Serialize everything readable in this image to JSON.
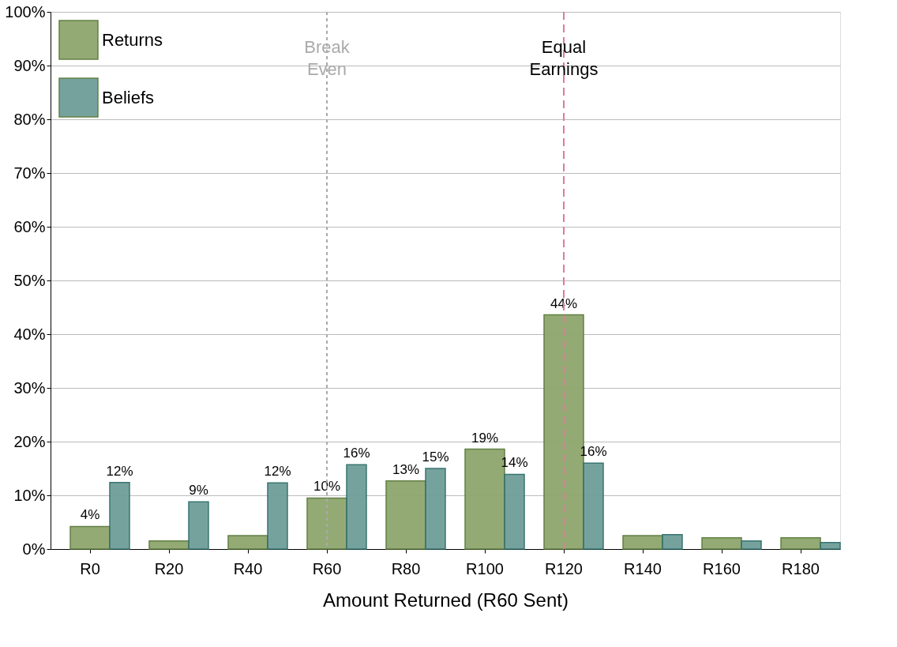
{
  "chart_data": {
    "type": "bar",
    "xlabel": "Amount Returned (R60 Sent)",
    "categories": [
      "R0",
      "R20",
      "R40",
      "R60",
      "R80",
      "R100",
      "R120",
      "R140",
      "R160",
      "R180"
    ],
    "series": [
      {
        "name": "Returns",
        "color": "#8fa66e",
        "values": [
          4.2,
          1.5,
          2.5,
          9.5,
          12.7,
          18.6,
          43.6,
          2.5,
          2.1,
          2.1
        ],
        "value_labels": [
          "4%",
          null,
          null,
          "10%",
          "13%",
          "19%",
          "44%",
          null,
          null,
          null
        ]
      },
      {
        "name": "Beliefs",
        "color": "#6f9e99",
        "values": [
          12.4,
          8.8,
          12.3,
          15.7,
          15.0,
          13.9,
          16.0,
          2.7,
          1.5,
          1.2
        ],
        "value_labels": [
          "12%",
          "9%",
          "12%",
          "16%",
          "15%",
          "14%",
          "16%",
          null,
          null,
          null
        ]
      }
    ],
    "ylim": [
      0,
      100
    ],
    "yticks": [
      {
        "value": 0,
        "label": "0%"
      },
      {
        "value": 10,
        "label": "10%"
      },
      {
        "value": 20,
        "label": "20%"
      },
      {
        "value": 30,
        "label": "30%"
      },
      {
        "value": 40,
        "label": "40%"
      },
      {
        "value": 50,
        "label": "50%"
      },
      {
        "value": 60,
        "label": "60%"
      },
      {
        "value": 70,
        "label": "70%"
      },
      {
        "value": 80,
        "label": "80%"
      },
      {
        "value": 90,
        "label": "90%"
      },
      {
        "value": 100,
        "label": "100%"
      }
    ],
    "grid": "y",
    "legend": "top left",
    "ref_lines": [
      {
        "axis": "x",
        "value": "R60",
        "label": "Break Even",
        "color": "#aaaaaa",
        "line_style": "dotted"
      },
      {
        "axis": "x",
        "value": "R120",
        "label": "Equal Earnings",
        "color": "#e07a9a",
        "line_style": "dashed"
      }
    ]
  }
}
